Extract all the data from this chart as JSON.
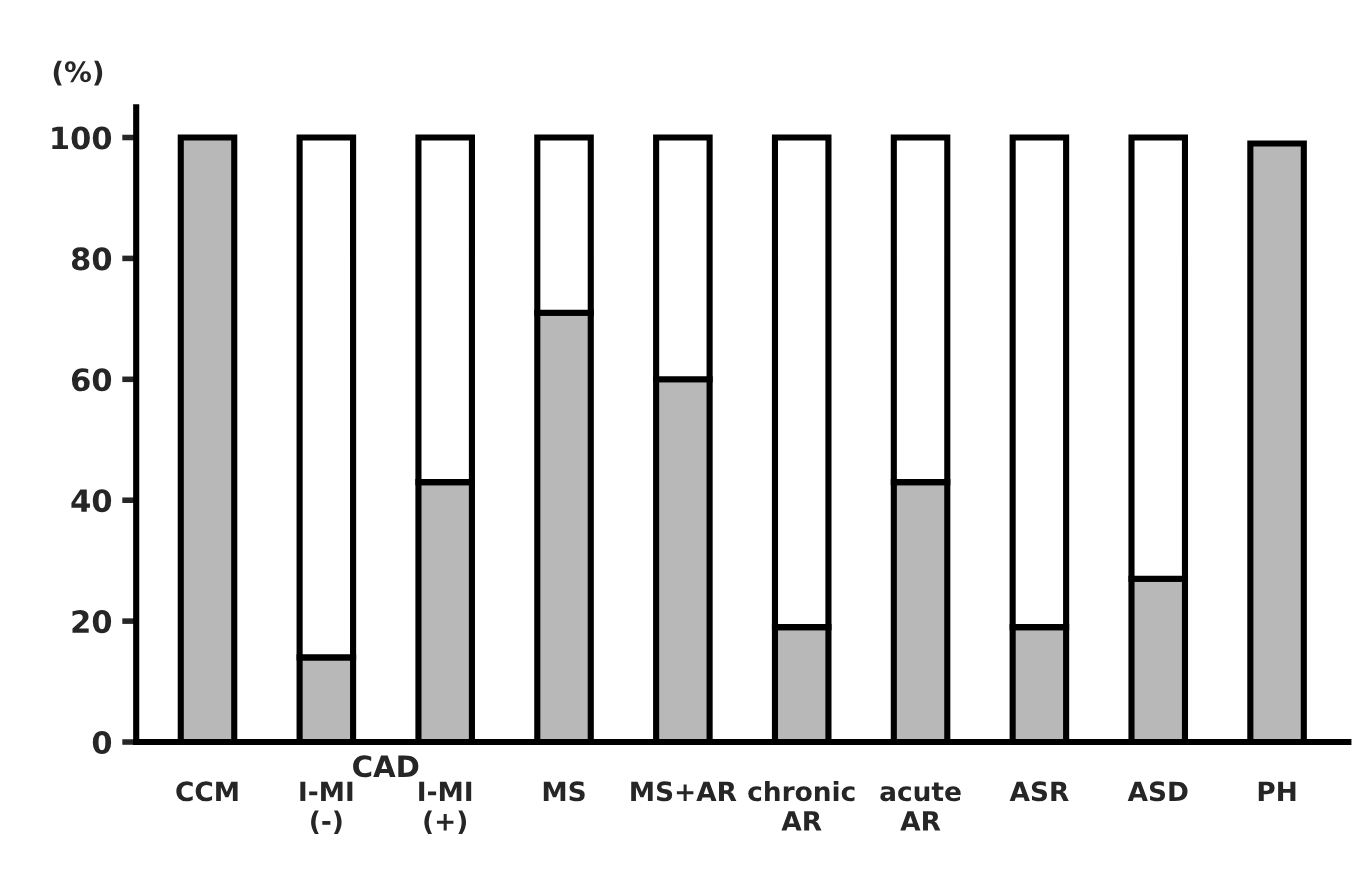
{
  "chart_data": {
    "type": "bar",
    "stacked": true,
    "ylabel": "(%)",
    "categories": [
      "CCM",
      "I-MI\n(-)",
      "I-MI\n(+)",
      "MS",
      "MS+AR",
      "chronic\nAR",
      "acute\nAR",
      "ASR",
      "ASD",
      "PH"
    ],
    "series": [
      {
        "color": "#b8b8b8",
        "values": [
          100,
          14,
          43,
          71,
          60,
          19,
          43,
          19,
          27,
          99
        ]
      },
      {
        "color": "#ffffff",
        "values": [
          null,
          86,
          57,
          29,
          40,
          81,
          57,
          81,
          73,
          null
        ]
      }
    ],
    "ylim": [
      0,
      105
    ],
    "yticks": [
      0,
      20,
      40,
      60,
      80,
      100
    ],
    "annotations": [
      "CAD"
    ]
  }
}
